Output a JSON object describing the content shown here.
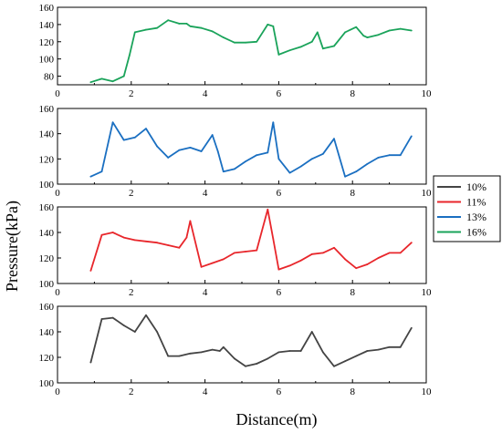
{
  "chart_data": {
    "type": "line",
    "xlabel": "Distance(m)",
    "ylabel": "Pressure(kPa)",
    "grid": false,
    "legend_position": "right",
    "legend": [
      {
        "label": "10%",
        "color": "#444444"
      },
      {
        "label": "11%",
        "color": "#e8262b"
      },
      {
        "label": "13%",
        "color": "#1a6fc1"
      },
      {
        "label": "16%",
        "color": "#1aa35a"
      }
    ],
    "panels": [
      {
        "series": "16%",
        "color": "#1aa35a",
        "xlim": [
          0,
          10
        ],
        "ylim": [
          70,
          160
        ],
        "x_ticks": [
          "0",
          "2",
          "4",
          "6",
          "8",
          "10"
        ],
        "y_ticks": [
          "80",
          "100",
          "120",
          "140",
          "160"
        ],
        "x": [
          0.9,
          1.2,
          1.5,
          1.8,
          1.95,
          2.1,
          2.4,
          2.7,
          3.0,
          3.3,
          3.5,
          3.6,
          3.9,
          4.2,
          4.5,
          4.8,
          5.1,
          5.4,
          5.7,
          5.85,
          6.0,
          6.3,
          6.6,
          6.9,
          7.05,
          7.2,
          7.5,
          7.8,
          8.1,
          8.3,
          8.4,
          8.7,
          9.0,
          9.3,
          9.6
        ],
        "y": [
          73,
          77,
          74,
          80,
          104,
          131,
          134,
          136,
          145,
          141,
          141,
          138,
          136,
          132,
          125,
          119,
          119,
          120,
          140,
          138,
          105,
          110,
          114,
          120,
          131,
          112,
          115,
          131,
          137,
          127,
          125,
          128,
          133,
          135,
          133
        ]
      },
      {
        "series": "13%",
        "color": "#1a6fc1",
        "xlim": [
          0,
          10
        ],
        "ylim": [
          100,
          160
        ],
        "x_ticks": [
          "0",
          "2",
          "4",
          "6",
          "8",
          "10"
        ],
        "y_ticks": [
          "100",
          "120",
          "140",
          "160"
        ],
        "x": [
          0.9,
          1.2,
          1.5,
          1.8,
          2.1,
          2.4,
          2.7,
          3.0,
          3.3,
          3.6,
          3.9,
          4.2,
          4.35,
          4.5,
          4.8,
          5.1,
          5.4,
          5.7,
          5.85,
          6.0,
          6.3,
          6.6,
          6.9,
          7.2,
          7.5,
          7.8,
          8.1,
          8.4,
          8.7,
          9.0,
          9.3,
          9.6
        ],
        "y": [
          106,
          110,
          149,
          135,
          137,
          144,
          130,
          121,
          127,
          129,
          126,
          139,
          126,
          110,
          112,
          118,
          123,
          125,
          149,
          120,
          109,
          114,
          120,
          124,
          136,
          106,
          110,
          116,
          121,
          123,
          123,
          138
        ]
      },
      {
        "series": "11%",
        "color": "#e8262b",
        "xlim": [
          0,
          10
        ],
        "ylim": [
          100,
          160
        ],
        "x_ticks": [
          "0",
          "2",
          "4",
          "6",
          "8",
          "10"
        ],
        "y_ticks": [
          "100",
          "120",
          "140",
          "160"
        ],
        "x": [
          0.9,
          1.2,
          1.5,
          1.8,
          2.1,
          2.4,
          2.7,
          3.0,
          3.3,
          3.5,
          3.6,
          3.9,
          4.2,
          4.5,
          4.8,
          5.1,
          5.4,
          5.7,
          5.85,
          6.0,
          6.3,
          6.6,
          6.9,
          7.2,
          7.5,
          7.8,
          8.1,
          8.4,
          8.7,
          9.0,
          9.3,
          9.6
        ],
        "y": [
          110,
          138,
          140,
          136,
          134,
          133,
          132,
          130,
          128,
          136,
          149,
          113,
          116,
          119,
          124,
          125,
          126,
          158,
          135,
          111,
          114,
          118,
          123,
          124,
          128,
          119,
          112,
          115,
          120,
          124,
          124,
          132
        ]
      },
      {
        "series": "10%",
        "color": "#444444",
        "xlim": [
          0,
          10
        ],
        "ylim": [
          100,
          160
        ],
        "x_ticks": [
          "0",
          "2",
          "4",
          "6",
          "8",
          "10"
        ],
        "y_ticks": [
          "100",
          "120",
          "140",
          "160"
        ],
        "x": [
          0.9,
          1.2,
          1.5,
          1.8,
          2.1,
          2.4,
          2.7,
          3.0,
          3.3,
          3.6,
          3.9,
          4.2,
          4.4,
          4.5,
          4.8,
          5.1,
          5.4,
          5.7,
          6.0,
          6.3,
          6.6,
          6.9,
          7.05,
          7.2,
          7.5,
          7.8,
          8.1,
          8.4,
          8.7,
          9.0,
          9.3,
          9.6
        ],
        "y": [
          116,
          150,
          151,
          145,
          140,
          153,
          140,
          121,
          121,
          123,
          124,
          126,
          125,
          128,
          119,
          113,
          115,
          119,
          124,
          125,
          125,
          140,
          132,
          124,
          113,
          117,
          121,
          125,
          126,
          128,
          128,
          143
        ]
      }
    ]
  }
}
